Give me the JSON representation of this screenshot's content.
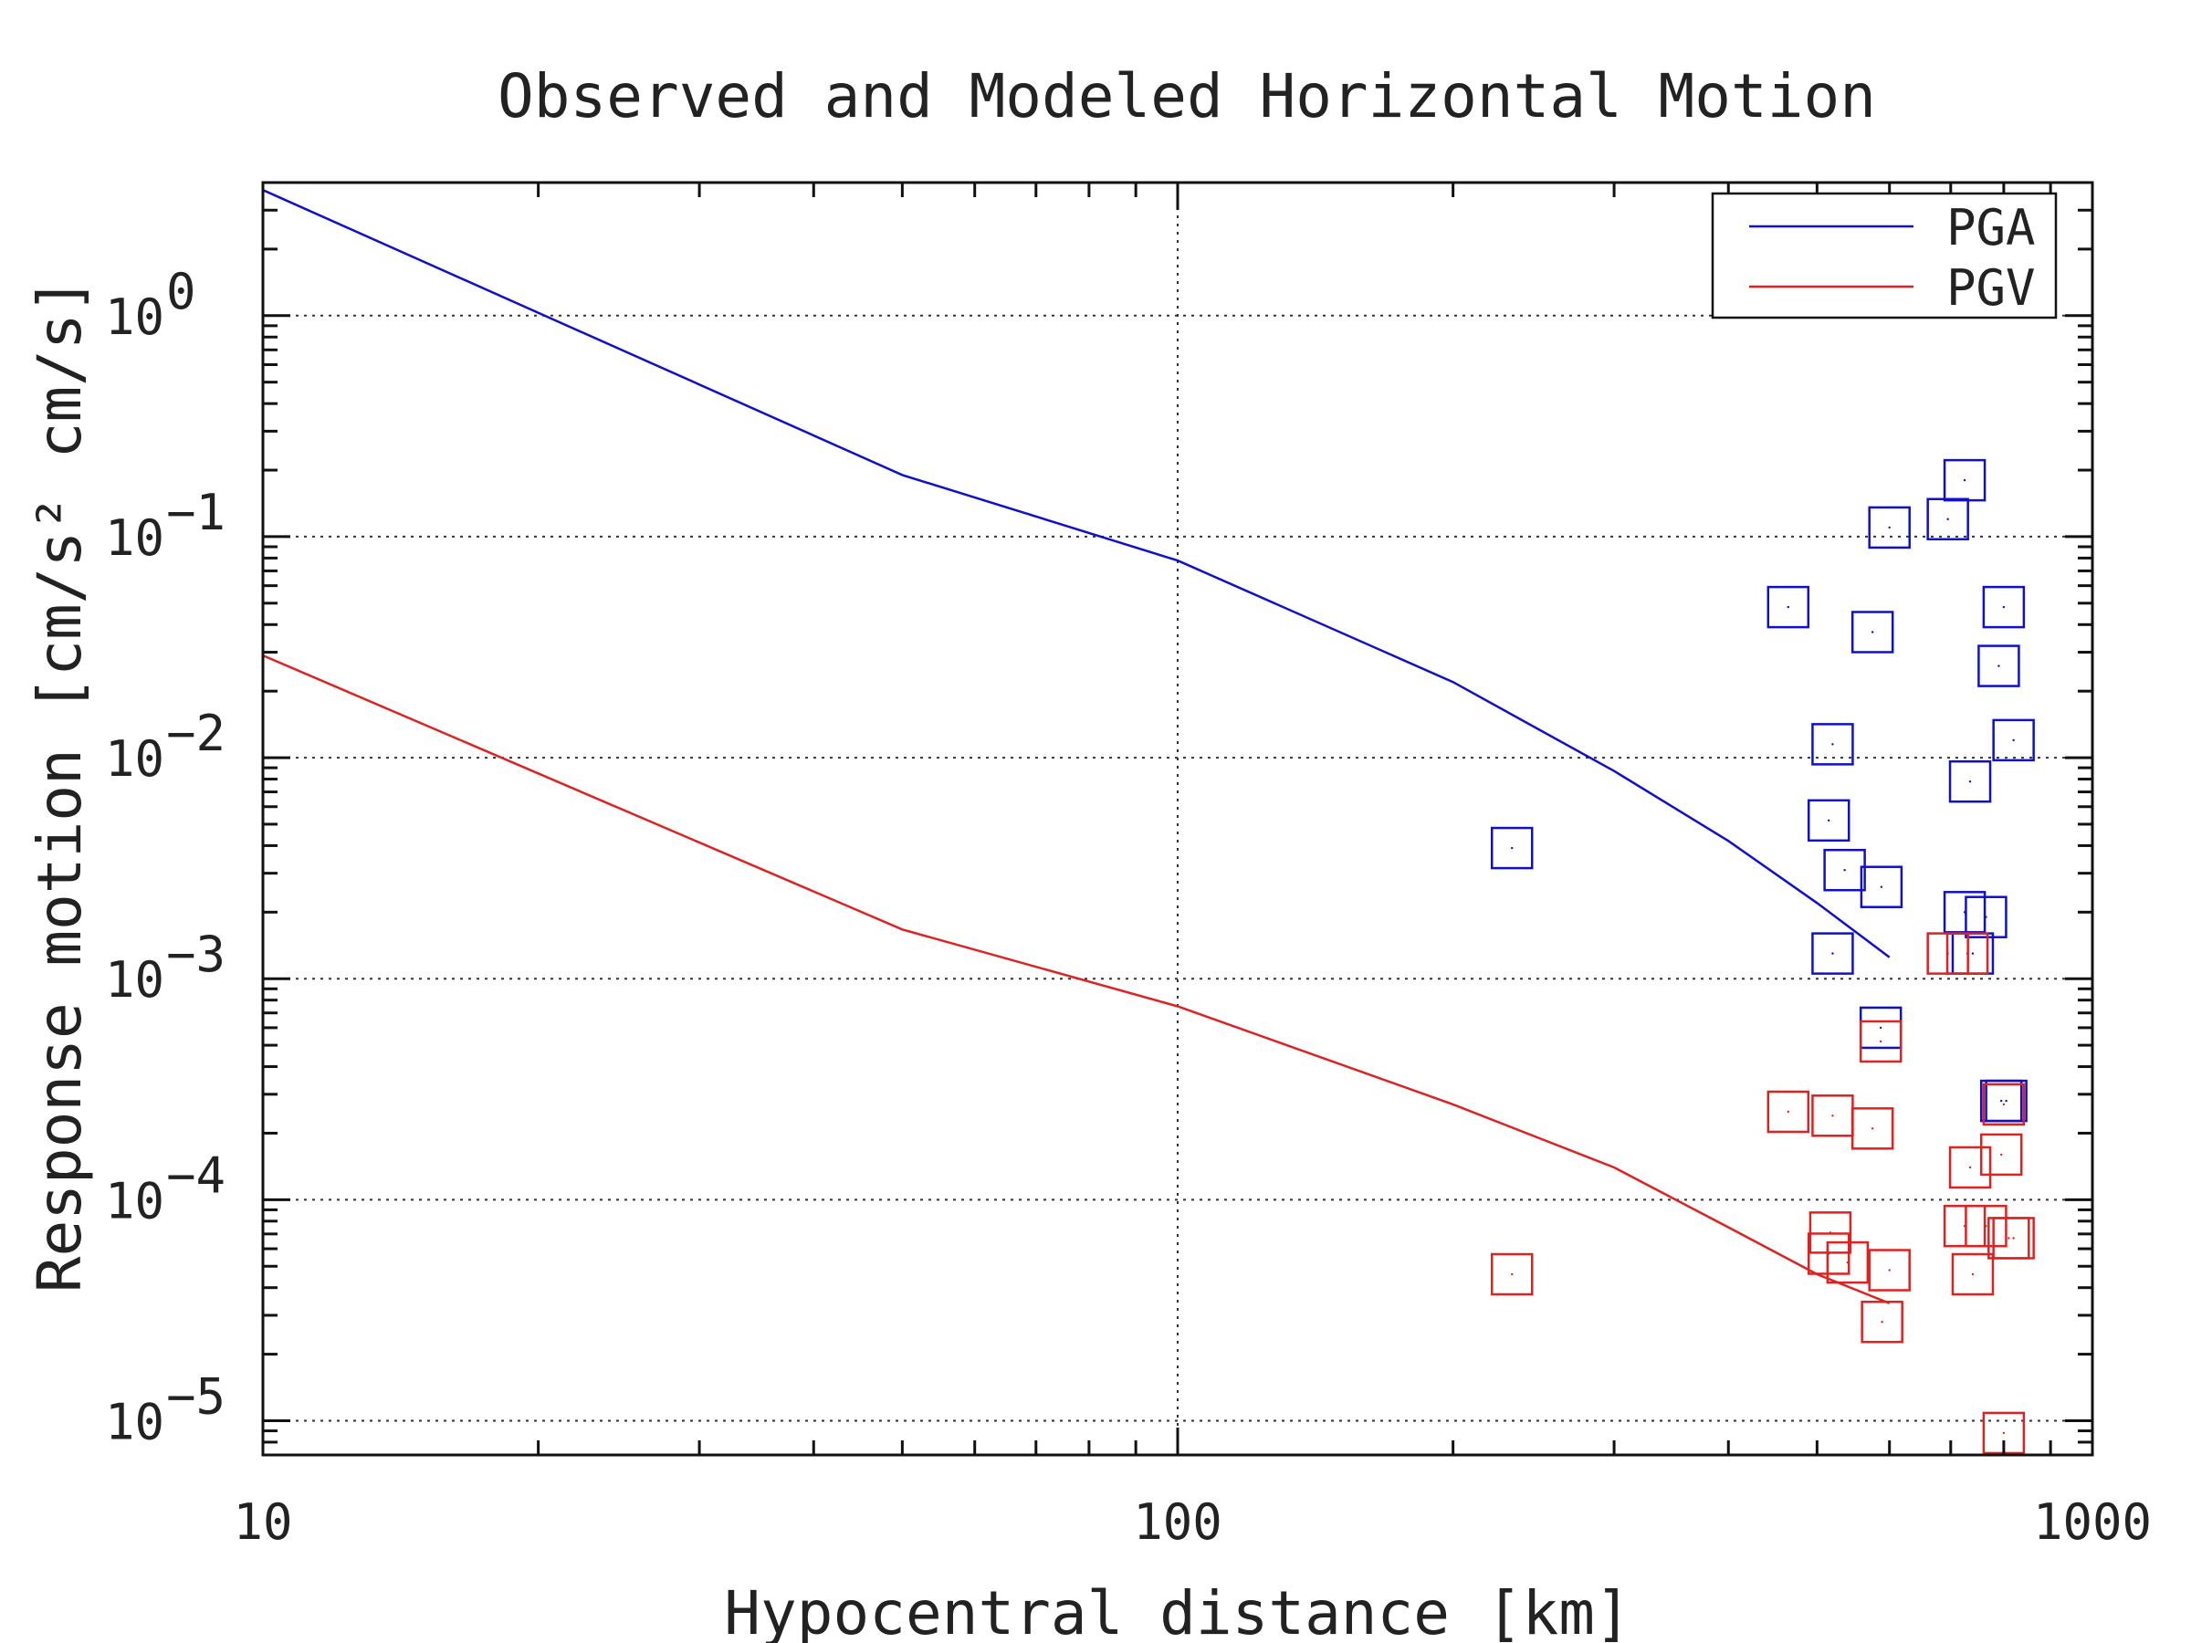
{
  "chart_data": {
    "type": "scatter",
    "title": "Observed and Modeled Horizontal Motion",
    "xlabel": "Hypocentral distance [km]",
    "ylabel": "Response motion [cm/s² cm/s]",
    "xscale": "log",
    "yscale": "log",
    "xlim": [
      10,
      1000
    ],
    "ylim": [
      7e-06,
      4
    ],
    "grid": true,
    "legend_position": "top-right",
    "x_ticks": [
      {
        "value": 10,
        "label": "10"
      },
      {
        "value": 100,
        "label": "100"
      },
      {
        "value": 1000,
        "label": "1000"
      }
    ],
    "y_ticks": [
      {
        "value": 1,
        "base": "10",
        "exp": "0"
      },
      {
        "value": 0.1,
        "base": "10",
        "exp": "−1"
      },
      {
        "value": 0.01,
        "base": "10",
        "exp": "−2"
      },
      {
        "value": 0.001,
        "base": "10",
        "exp": "−3"
      },
      {
        "value": 0.0001,
        "base": "10",
        "exp": "−4"
      },
      {
        "value": 1e-05,
        "base": "10",
        "exp": "−5"
      }
    ],
    "series": [
      {
        "name": "PGA",
        "color": "#1010cc",
        "model_x": [
          10,
          50,
          100,
          200,
          300,
          400,
          500,
          600
        ],
        "model_y": [
          3.7,
          0.19,
          0.078,
          0.022,
          0.0087,
          0.0042,
          0.0022,
          0.00125
        ],
        "observed_x": [
          232,
          465,
          520,
          515,
          536,
          520,
          588,
          600,
          575,
          587,
          695,
          725,
          735,
          740,
          725,
          765,
          800,
          790,
          820,
          795,
          805
        ],
        "observed_y": [
          0.0039,
          0.048,
          0.0115,
          0.0052,
          0.0031,
          0.0013,
          0.0026,
          0.11,
          0.037,
          0.0006,
          0.12,
          0.18,
          0.0078,
          0.0013,
          0.002,
          0.0019,
          0.048,
          0.026,
          0.012,
          0.00028,
          0.00028
        ]
      },
      {
        "name": "PGV",
        "color": "#dd2222",
        "model_x": [
          10,
          50,
          100,
          200,
          300,
          400,
          500,
          600
        ],
        "model_y": [
          0.029,
          0.00167,
          0.00075,
          0.00027,
          0.00014,
          7.5e-05,
          4.6e-05,
          3.4e-05
        ],
        "observed_x": [
          232,
          465,
          520,
          517,
          515,
          540,
          600,
          587,
          575,
          589,
          695,
          730,
          725,
          735,
          740,
          765,
          800,
          795,
          810,
          820,
          800
        ],
        "observed_y": [
          4.6e-05,
          0.00025,
          0.00024,
          7.1e-05,
          5.7e-05,
          5.2e-05,
          4.8e-05,
          0.00052,
          0.00021,
          2.8e-05,
          0.0013,
          0.0013,
          7.6e-05,
          0.00014,
          4.6e-05,
          7.6e-05,
          0.00027,
          0.00016,
          6.7e-05,
          6.7e-05,
          8.8e-06
        ]
      }
    ]
  }
}
